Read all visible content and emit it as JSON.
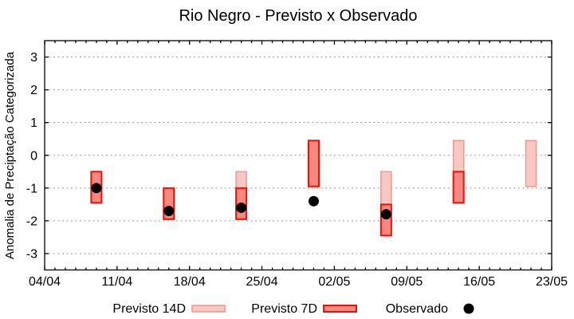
{
  "chart_data": {
    "type": "bar",
    "subtype": "floating-range-bars-with-scatter",
    "title": "Rio Negro - Previsto x Observado",
    "ylabel": "Anomalia de Preciptação Categorizada",
    "xlabel": "",
    "ylim": [
      -3.5,
      3.5
    ],
    "yticks": [
      3,
      2,
      1,
      0,
      -1,
      -2,
      -3
    ],
    "x_axis": {
      "tick_labels": [
        "04/04",
        "11/04",
        "18/04",
        "25/04",
        "02/05",
        "09/05",
        "16/05",
        "23/05"
      ],
      "tick_days": [
        0,
        7,
        14,
        21,
        28,
        35,
        42,
        49
      ],
      "total_days": 49,
      "minor_tick_every_days": 1
    },
    "grid": {
      "horizontal": true,
      "style": "dotted",
      "color": "#9a9a9a"
    },
    "colors": {
      "previsto14_fill": "#fac8c3",
      "previsto14_border": "#ef968e",
      "previsto7_fill": "#f78880",
      "previsto7_border": "#e81209",
      "observado": "#000000",
      "axis": "#000000",
      "background": "#ffffff"
    },
    "series": [
      {
        "name": "Previsto 14D",
        "type": "range-bar",
        "fill": "#fac8c3",
        "border": "#ef968e",
        "border_width": 1.5,
        "points": [
          {
            "date": "23/04",
            "day": 19,
            "high": -0.5,
            "low": -1.0
          },
          {
            "date": "07/05",
            "day": 33,
            "high": -0.5,
            "low": -1.5
          },
          {
            "date": "14/05",
            "day": 40,
            "high": 0.45,
            "low": -0.5
          },
          {
            "date": "21/05",
            "day": 47,
            "high": 0.45,
            "low": -0.95
          }
        ]
      },
      {
        "name": "Previsto 7D",
        "type": "range-bar",
        "fill": "#f78880",
        "border": "#e81209",
        "border_width": 2,
        "points": [
          {
            "date": "09/04",
            "day": 5,
            "high": -0.5,
            "low": -1.45
          },
          {
            "date": "16/04",
            "day": 12,
            "high": -1.0,
            "low": -1.95
          },
          {
            "date": "23/04",
            "day": 19,
            "high": -1.0,
            "low": -1.95
          },
          {
            "date": "30/04",
            "day": 26,
            "high": 0.45,
            "low": -0.95
          },
          {
            "date": "07/05",
            "day": 33,
            "high": -1.5,
            "low": -2.45
          },
          {
            "date": "14/05",
            "day": 40,
            "high": -0.5,
            "low": -1.45
          }
        ]
      },
      {
        "name": "Observado",
        "type": "scatter",
        "color": "#000000",
        "points": [
          {
            "date": "09/04",
            "day": 5,
            "value": -1.0
          },
          {
            "date": "16/04",
            "day": 12,
            "value": -1.7
          },
          {
            "date": "23/04",
            "day": 19,
            "value": -1.6
          },
          {
            "date": "30/04",
            "day": 26,
            "value": -1.4
          },
          {
            "date": "07/05",
            "day": 33,
            "value": -1.8
          }
        ]
      }
    ],
    "legend": {
      "position": "bottom",
      "items": [
        {
          "label": "Previsto 14D",
          "marker": "box-light"
        },
        {
          "label": "Previsto 7D",
          "marker": "box-dark"
        },
        {
          "label": "Observado",
          "marker": "dot"
        }
      ]
    }
  }
}
